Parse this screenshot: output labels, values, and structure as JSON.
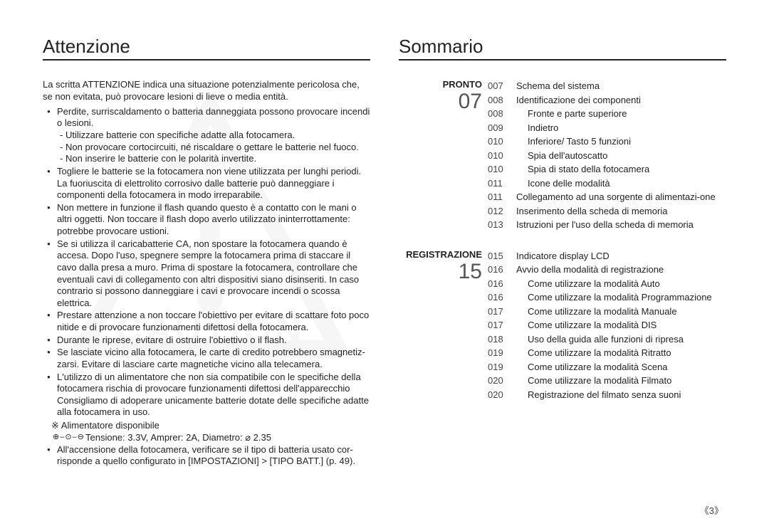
{
  "left": {
    "heading": "Attenzione",
    "intro": "La scritta ATTENZIONE indica una situazione potenzialmente pericolosa che, se non evitata, può provocare lesioni di lieve o media entità.",
    "bullets": [
      {
        "text": "Perdite, surriscaldamento o batteria danneggiata possono provocare incendi o lesioni.",
        "subs": [
          "Utilizzare batterie con specifiche adatte alla fotocamera.",
          "Non provocare cortocircuiti, né riscaldare o gettare le batterie nel fuoco.",
          "Non inserire le batterie con le polarità invertite."
        ]
      },
      {
        "text": "Togliere le batterie se la fotocamera non viene utilizzata per lunghi periodi. La fuoriuscita di elettrolito corrosivo dalle batterie può danneggiare i componenti della fotocamera in modo irreparabile."
      },
      {
        "text": "Non mettere in funzione il flash quando questo è a contatto con le mani o altri oggetti. Non toccare il flash dopo averlo utilizzato ininterrottamente: potrebbe provocare ustioni."
      },
      {
        "text": "Se si utilizza il caricabatterie CA, non spostare la fotocamera quando è accesa. Dopo l'uso, spegnere sempre la fotocamera prima di staccare il cavo dalla presa a muro. Prima di spostare la fotocamera, controllare che eventuali cavi di collegamento con altri dispositivi siano disinseriti. In caso contrario si possono danneggiare i cavi e provocare incendi o scossa elettrica."
      },
      {
        "text": "Prestare attenzione a non toccare l'obiettivo per evitare di scattare foto poco nitide e di provocare funzionamenti difettosi della fotocamera."
      },
      {
        "text": "Durante le riprese, evitare di ostruire l'obiettivo o il flash."
      },
      {
        "text": "Se lasciate vicino alla fotocamera, le carte di credito potrebbero smagnetiz-zarsi. Evitare di lasciare carte magnetiche vicino alla telecamera."
      },
      {
        "text": "L'utilizzo di un alimentatore che non sia compatibile con le specifiche della fotocamera rischia di provocare funzionamenti difettosi dell'apparecchio Consigliamo di adoperare unicamente batterie dotate delle specifiche adatte alla fotocamera in uso."
      }
    ],
    "note": "※ Alimentatore disponibile",
    "spec": "Tensione: 3.3V, Amprer: 2A, Diametro:  ⌀ 2.35",
    "last_bullet": "All'accensione della fotocamera, verificare se il tipo di batteria usato cor-risponde a quello configurato in [IMPOSTAZIONI] > [TIPO BATT.] (p. 49).",
    "watermark_text": "CAUTION"
  },
  "right": {
    "heading": "Sommario",
    "sections": [
      {
        "name": "PRONTO",
        "number": "07",
        "items": [
          {
            "page": "007",
            "text": "Schema del sistema",
            "indent": false
          },
          {
            "page": "008",
            "text": "Identificazione dei componenti",
            "indent": false
          },
          {
            "page": "008",
            "text": "Fronte e parte superiore",
            "indent": true
          },
          {
            "page": "009",
            "text": "Indietro",
            "indent": true
          },
          {
            "page": "010",
            "text": "Inferiore/ Tasto 5 funzioni",
            "indent": true
          },
          {
            "page": "010",
            "text": "Spia dell'autoscatto",
            "indent": true
          },
          {
            "page": "010",
            "text": "Spia di stato della fotocamera",
            "indent": true
          },
          {
            "page": "011",
            "text": "Icone delle modalità",
            "indent": true
          },
          {
            "page": "011",
            "text": "Collegamento ad una sorgente di alimentazi-one",
            "indent": false
          },
          {
            "page": "012",
            "text": "Inserimento della scheda di memoria",
            "indent": false
          },
          {
            "page": "013",
            "text": "Istruzioni per l'uso della scheda di memoria",
            "indent": false
          }
        ]
      },
      {
        "name": "REGISTRAZIONE",
        "number": "15",
        "items": [
          {
            "page": "015",
            "text": "Indicatore display LCD",
            "indent": false
          },
          {
            "page": "016",
            "text": "Avvio della modalità di registrazione",
            "indent": false
          },
          {
            "page": "016",
            "text": "Come utilizzare la modalità Auto",
            "indent": true
          },
          {
            "page": "016",
            "text": "Come utilizzare la modalità Programmazione",
            "indent": true
          },
          {
            "page": "017",
            "text": "Come utilizzare la modalità Manuale",
            "indent": true
          },
          {
            "page": "017",
            "text": "Come utilizzare la modalità DIS",
            "indent": true
          },
          {
            "page": "018",
            "text": "Uso della guida alle funzioni di ripresa",
            "indent": true
          },
          {
            "page": "019",
            "text": "Come utilizzare la modalità Ritratto",
            "indent": true
          },
          {
            "page": "019",
            "text": "Come utilizzare la modalità Scena",
            "indent": true
          },
          {
            "page": "020",
            "text": "Come utilizzare la modalità Filmato",
            "indent": true
          },
          {
            "page": "020",
            "text": "Registrazione del filmato senza suoni",
            "indent": true
          }
        ]
      }
    ]
  },
  "page_number": "《3》",
  "colors": {
    "text": "#222222",
    "rule": "#222222",
    "muted": "#555555",
    "watermark": "#bdbdbd"
  }
}
